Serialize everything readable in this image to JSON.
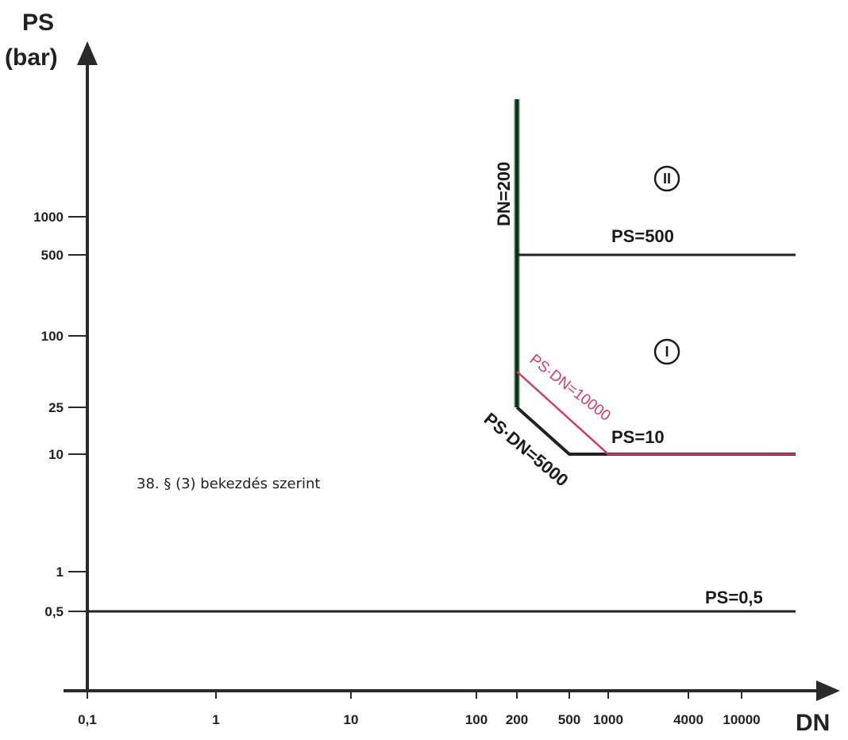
{
  "chart_data": {
    "type": "line",
    "y_axis_title_line1": "PS",
    "y_axis_title_line2": "(bar)",
    "x_axis_title": "DN",
    "x_scale": "log",
    "y_scale": "log",
    "x_ticks": [
      {
        "value": 0.1,
        "label": "0,1"
      },
      {
        "value": 1,
        "label": "1"
      },
      {
        "value": 10,
        "label": "10"
      },
      {
        "value": 100,
        "label": "100"
      },
      {
        "value": 200,
        "label": "200"
      },
      {
        "value": 500,
        "label": "500"
      },
      {
        "value": 1000,
        "label": "1000"
      },
      {
        "value": 4000,
        "label": "4000"
      },
      {
        "value": 10000,
        "label": "10000"
      }
    ],
    "y_ticks": [
      {
        "value": 0.5,
        "label": "0,5"
      },
      {
        "value": 1,
        "label": "1"
      },
      {
        "value": 10,
        "label": "10"
      },
      {
        "value": 25,
        "label": "25"
      },
      {
        "value": 100,
        "label": "100"
      },
      {
        "value": 500,
        "label": "500"
      },
      {
        "value": 1000,
        "label": "1000"
      }
    ],
    "series": [
      {
        "label": "PS=0,5",
        "color": "#222222",
        "points": [
          [
            0.1,
            0.5
          ],
          [
            30000,
            0.5
          ]
        ]
      },
      {
        "label": "PS=500",
        "color": "#222222",
        "points": [
          [
            200,
            500
          ],
          [
            30000,
            500
          ]
        ]
      },
      {
        "label": "DN=200",
        "color": "#222222",
        "points": [
          [
            200,
            25
          ],
          [
            200,
            8000
          ]
        ]
      },
      {
        "label": "PS·DN=5000",
        "color": "#222222",
        "points": [
          [
            200,
            25
          ],
          [
            500,
            10
          ],
          [
            30000,
            10
          ]
        ]
      },
      {
        "label": "PS·DN=10000",
        "color": "#d33a6a",
        "points": [
          [
            200,
            50
          ],
          [
            1000,
            10
          ],
          [
            30000,
            10
          ]
        ]
      }
    ],
    "green_line_points": [
      [
        200,
        25
      ],
      [
        200,
        8000
      ]
    ],
    "labels": {
      "ps_10": "PS=10",
      "ps_500": "PS=500",
      "ps_05": "PS=0,5",
      "dn_200": "DN=200",
      "ps_dn_5000": "PS·DN=5000",
      "ps_dn_10000": "PS·DN=10000"
    },
    "regions": {
      "region_1": "I",
      "region_2": "II"
    },
    "note": "38. § (3) bekezdés szerint"
  }
}
